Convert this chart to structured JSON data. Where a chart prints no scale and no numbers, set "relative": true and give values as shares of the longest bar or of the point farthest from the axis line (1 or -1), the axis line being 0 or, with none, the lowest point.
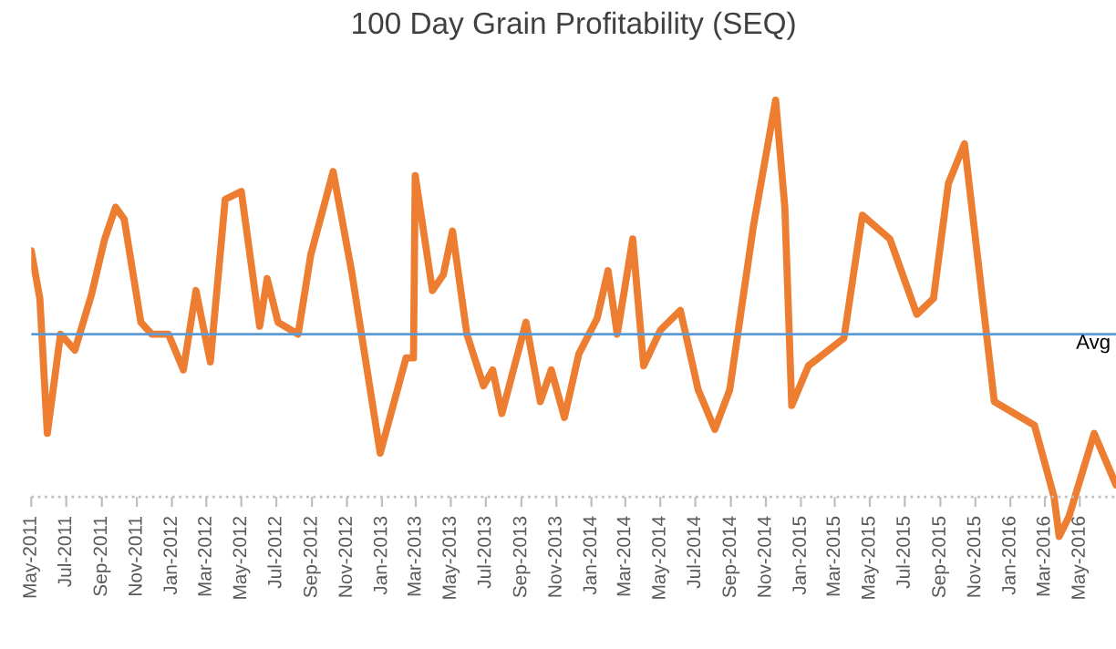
{
  "chart_data": {
    "type": "line",
    "title": "100 Day Grain Profitability (SEQ)",
    "relative": true,
    "x": [
      "2011-05-01",
      "2011-05-16",
      "2011-05-29",
      "2011-06-21",
      "2011-07-16",
      "2011-08-14",
      "2011-09-06",
      "2011-09-25",
      "2011-10-10",
      "2011-11-08",
      "2011-11-27",
      "2011-12-26",
      "2012-01-21",
      "2012-02-12",
      "2012-03-08",
      "2012-04-03",
      "2012-05-01",
      "2012-06-02",
      "2012-06-15",
      "2012-07-04",
      "2012-08-08",
      "2012-08-30",
      "2012-10-08",
      "2012-11-09",
      "2012-12-29",
      "2013-02-12",
      "2013-02-25",
      "2013-02-28",
      "2013-03-30",
      "2013-04-18",
      "2013-05-04",
      "2013-05-29",
      "2013-06-27",
      "2013-07-13",
      "2013-07-29",
      "2013-09-09",
      "2013-10-04",
      "2013-10-23",
      "2013-11-15",
      "2013-12-10",
      "2014-01-11",
      "2014-01-30",
      "2014-02-15",
      "2014-03-14",
      "2014-04-02",
      "2014-05-01",
      "2014-06-05",
      "2014-07-06",
      "2014-08-04",
      "2014-08-30",
      "2014-10-10",
      "2014-11-18",
      "2014-12-04",
      "2014-12-16",
      "2015-01-14",
      "2015-03-17",
      "2015-04-18",
      "2015-06-05",
      "2015-07-22",
      "2015-08-20",
      "2015-09-15",
      "2015-10-13",
      "2015-12-04",
      "2016-02-12",
      "2016-03-17",
      "2016-03-26",
      "2016-04-12",
      "2016-05-26",
      "2016-07-03"
    ],
    "series": [
      {
        "color": "#ed7d31",
        "values": [
          0.62,
          0.5,
          0.16,
          0.41,
          0.37,
          0.51,
          0.65,
          0.73,
          0.7,
          0.44,
          0.41,
          0.41,
          0.32,
          0.52,
          0.34,
          0.75,
          0.77,
          0.43,
          0.55,
          0.44,
          0.41,
          0.61,
          0.82,
          0.57,
          0.11,
          0.35,
          0.35,
          0.81,
          0.52,
          0.56,
          0.67,
          0.41,
          0.28,
          0.32,
          0.21,
          0.44,
          0.24,
          0.32,
          0.2,
          0.36,
          0.45,
          0.57,
          0.41,
          0.65,
          0.33,
          0.42,
          0.47,
          0.27,
          0.17,
          0.27,
          0.68,
          1.0,
          0.73,
          0.23,
          0.33,
          0.4,
          0.71,
          0.65,
          0.46,
          0.5,
          0.79,
          0.89,
          0.24,
          0.18,
          0.0,
          -0.1,
          -0.05,
          0.16,
          0.03
        ]
      }
    ],
    "xlim": [
      "2011-05-01",
      "2016-07-03"
    ],
    "xticks": [
      {
        "value": "2011-05-01",
        "label": "May-2011"
      },
      {
        "value": "2011-07-01",
        "label": "Jul-2011"
      },
      {
        "value": "2011-09-01",
        "label": "Sep-2011"
      },
      {
        "value": "2011-11-01",
        "label": "Nov-2011"
      },
      {
        "value": "2012-01-01",
        "label": "Jan-2012"
      },
      {
        "value": "2012-03-01",
        "label": "Mar-2012"
      },
      {
        "value": "2012-05-01",
        "label": "May-2012"
      },
      {
        "value": "2012-07-01",
        "label": "Jul-2012"
      },
      {
        "value": "2012-09-01",
        "label": "Sep-2012"
      },
      {
        "value": "2012-11-01",
        "label": "Nov-2012"
      },
      {
        "value": "2013-01-01",
        "label": "Jan-2013"
      },
      {
        "value": "2013-03-01",
        "label": "Mar-2013"
      },
      {
        "value": "2013-05-01",
        "label": "May-2013"
      },
      {
        "value": "2013-07-01",
        "label": "Jul-2013"
      },
      {
        "value": "2013-09-01",
        "label": "Sep-2013"
      },
      {
        "value": "2013-11-01",
        "label": "Nov-2013"
      },
      {
        "value": "2014-01-01",
        "label": "Jan-2014"
      },
      {
        "value": "2014-03-01",
        "label": "Mar-2014"
      },
      {
        "value": "2014-05-01",
        "label": "May-2014"
      },
      {
        "value": "2014-07-01",
        "label": "Jul-2014"
      },
      {
        "value": "2014-09-01",
        "label": "Sep-2014"
      },
      {
        "value": "2014-11-01",
        "label": "Nov-2014"
      },
      {
        "value": "2015-01-01",
        "label": "Jan-2015"
      },
      {
        "value": "2015-03-01",
        "label": "Mar-2015"
      },
      {
        "value": "2015-05-01",
        "label": "May-2015"
      },
      {
        "value": "2015-07-01",
        "label": "Jul-2015"
      },
      {
        "value": "2015-09-01",
        "label": "Sep-2015"
      },
      {
        "value": "2015-11-01",
        "label": "Nov-2015"
      },
      {
        "value": "2016-01-01",
        "label": "Jan-2016"
      },
      {
        "value": "2016-03-01",
        "label": "Mar-2016"
      },
      {
        "value": "2016-05-01",
        "label": "May-2016"
      }
    ],
    "ref_lines": [
      {
        "axis": "y",
        "value": 0,
        "color": "#bfbfbf",
        "line_style": "dotted"
      },
      {
        "axis": "y",
        "value": 0.41,
        "label": "Avg",
        "color": "#5b9bd5"
      }
    ],
    "tick_labels": "x",
    "grid": false,
    "legend": false,
    "marker": "none",
    "line_style": "solid"
  }
}
